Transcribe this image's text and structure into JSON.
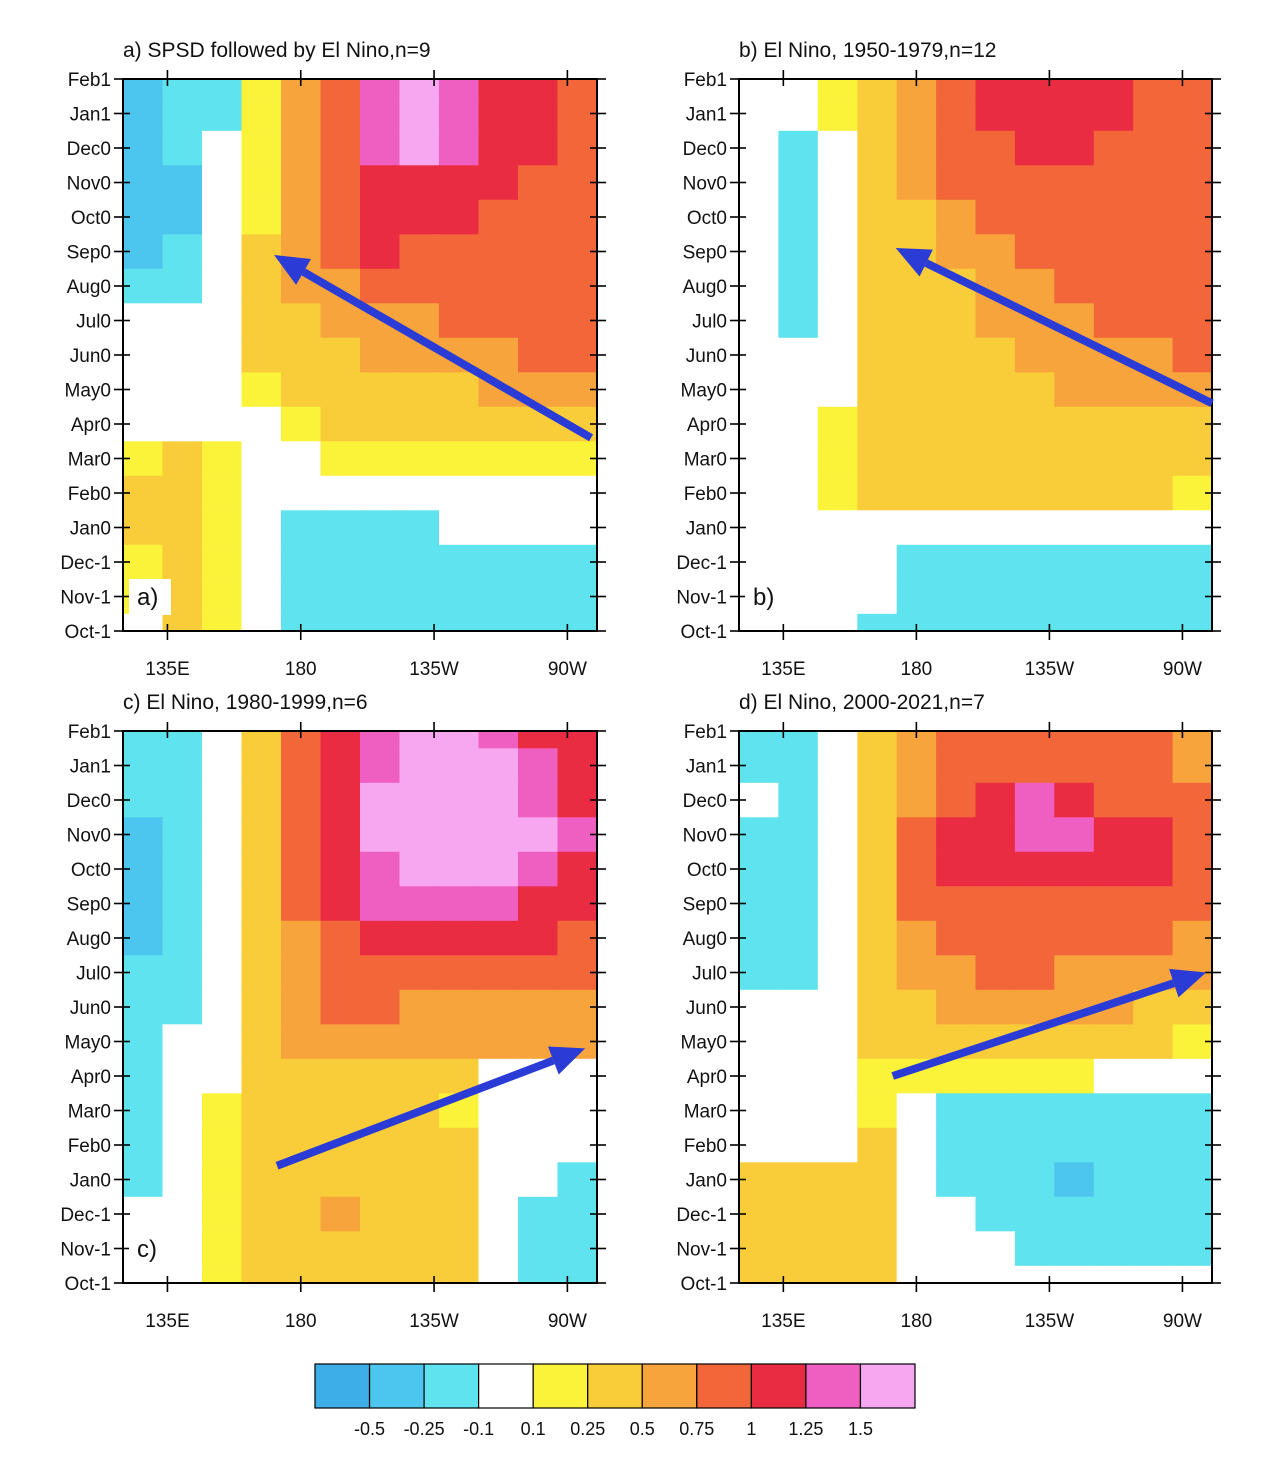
{
  "chart_data": {
    "type": "heatmap",
    "y_ticks": [
      "Feb1",
      "Jan1",
      "Dec0",
      "Nov0",
      "Oct0",
      "Sep0",
      "Aug0",
      "Jul0",
      "Jun0",
      "May0",
      "Apr0",
      "Mar0",
      "Feb0",
      "Jan0",
      "Dec-1",
      "Nov-1",
      "Oct-1"
    ],
    "x_ticks": [
      "135E",
      "180",
      "135W",
      "90W"
    ],
    "x_tick_lon": [
      135,
      180,
      225,
      270
    ],
    "xlim_lon": [
      120,
      280
    ],
    "grid": false,
    "colorbar": {
      "labels": [
        "-0.5",
        "-0.25",
        "-0.1",
        "0.1",
        "0.25",
        "0.5",
        "0.75",
        "1",
        "1.25",
        "1.5"
      ],
      "colors": [
        "#3eaee8",
        "#4cc6ee",
        "#5ee3ef",
        "#ffffff",
        "#fbf23a",
        "#f9cc3a",
        "#f7a43c",
        "#f2663a",
        "#ea2c43",
        "#ef5fc1",
        "#f7a6f0"
      ]
    },
    "panels": [
      {
        "id": "a",
        "title": "a) SPSD followed by El Nino,n=9",
        "label": "a)",
        "arrow": {
          "from": {
            "lon": 278,
            "month": 10.4
          },
          "to": {
            "lon": 171,
            "month": 5.1
          }
        },
        "field": [
          [
            -0.5,
            -0.25,
            -0.25,
            0.1,
            0.5,
            0.75,
            1.25,
            1.5,
            1.25,
            1.0,
            1.0,
            0.75
          ],
          [
            -0.5,
            -0.25,
            -0.25,
            0.1,
            0.5,
            0.75,
            1.25,
            1.5,
            1.25,
            1.0,
            1.0,
            0.75
          ],
          [
            -0.5,
            -0.25,
            -0.1,
            0.1,
            0.5,
            0.75,
            1.25,
            1.5,
            1.25,
            1.0,
            1.0,
            0.75
          ],
          [
            -0.5,
            -0.5,
            -0.1,
            0.1,
            0.5,
            0.75,
            1.0,
            1.0,
            1.0,
            1.0,
            0.75,
            0.75
          ],
          [
            -0.5,
            -0.5,
            -0.1,
            0.1,
            0.5,
            0.75,
            1.0,
            1.0,
            1.0,
            0.75,
            0.75,
            0.75
          ],
          [
            -0.5,
            -0.25,
            -0.1,
            0.25,
            0.5,
            0.75,
            1.0,
            0.75,
            0.75,
            0.75,
            0.75,
            0.75
          ],
          [
            -0.25,
            -0.25,
            0,
            0.25,
            0.5,
            0.5,
            0.75,
            0.75,
            0.75,
            0.75,
            0.75,
            0.75
          ],
          [
            0,
            0,
            0,
            0.25,
            0.25,
            0.5,
            0.5,
            0.5,
            0.75,
            0.75,
            0.75,
            0.75
          ],
          [
            0,
            0,
            0,
            0.25,
            0.25,
            0.25,
            0.5,
            0.5,
            0.5,
            0.5,
            0.75,
            0.75
          ],
          [
            0,
            0,
            0,
            0.1,
            0.25,
            0.25,
            0.25,
            0.25,
            0.25,
            0.5,
            0.5,
            0.5
          ],
          [
            0,
            0,
            0,
            0,
            0.1,
            0.25,
            0.25,
            0.25,
            0.25,
            0.25,
            0.25,
            0.25
          ],
          [
            0.1,
            0.25,
            0.1,
            0,
            0,
            0.1,
            0.1,
            0.1,
            0.1,
            0.1,
            0.1,
            0.1
          ],
          [
            0.25,
            0.25,
            0.1,
            -0.1,
            -0.1,
            -0.1,
            0,
            0,
            0,
            0,
            0,
            0
          ],
          [
            0.25,
            0.25,
            0.1,
            -0.1,
            -0.25,
            -0.25,
            -0.25,
            -0.25,
            -0.1,
            -0.1,
            -0.1,
            -0.1
          ],
          [
            0.1,
            0.25,
            0.1,
            -0.1,
            -0.25,
            -0.25,
            -0.25,
            -0.25,
            -0.25,
            -0.25,
            -0.25,
            -0.25
          ],
          [
            0.1,
            0.25,
            0.1,
            -0.1,
            -0.25,
            -0.25,
            -0.25,
            -0.25,
            -0.25,
            -0.25,
            -0.25,
            -0.25
          ],
          [
            0,
            0.25,
            0.1,
            -0.1,
            -0.25,
            -0.25,
            -0.25,
            -0.25,
            -0.25,
            -0.25,
            -0.25,
            -0.25
          ]
        ]
      },
      {
        "id": "b",
        "title": "b) El Nino, 1950-1979,n=12",
        "label": "b)",
        "arrow": {
          "from": {
            "lon": 280,
            "month": 9.4
          },
          "to": {
            "lon": 173,
            "month": 4.9
          }
        },
        "field": [
          [
            0,
            0,
            0.1,
            0.25,
            0.5,
            0.75,
            1.0,
            1.0,
            1.0,
            1.0,
            0.75,
            0.75
          ],
          [
            0,
            0,
            0.1,
            0.25,
            0.5,
            0.75,
            1.0,
            1.0,
            1.0,
            1.0,
            0.75,
            0.75
          ],
          [
            0,
            -0.25,
            -0.1,
            0.25,
            0.5,
            0.75,
            0.75,
            1.0,
            1.0,
            0.75,
            0.75,
            0.75
          ],
          [
            0,
            -0.25,
            -0.1,
            0.25,
            0.5,
            0.75,
            0.75,
            0.75,
            0.75,
            0.75,
            0.75,
            0.75
          ],
          [
            0,
            -0.25,
            -0.1,
            0.25,
            0.25,
            0.5,
            0.75,
            0.75,
            0.75,
            0.75,
            0.75,
            0.75
          ],
          [
            0,
            -0.25,
            -0.1,
            0.25,
            0.25,
            0.5,
            0.5,
            0.75,
            0.75,
            0.75,
            0.75,
            0.75
          ],
          [
            0,
            -0.25,
            -0.1,
            0.25,
            0.25,
            0.25,
            0.5,
            0.5,
            0.75,
            0.75,
            0.75,
            0.75
          ],
          [
            0,
            -0.25,
            0,
            0.25,
            0.25,
            0.25,
            0.5,
            0.5,
            0.5,
            0.75,
            0.75,
            0.75
          ],
          [
            0,
            0,
            0,
            0.25,
            0.25,
            0.25,
            0.25,
            0.5,
            0.5,
            0.5,
            0.5,
            0.75
          ],
          [
            0,
            0,
            0,
            0.25,
            0.25,
            0.25,
            0.25,
            0.25,
            0.5,
            0.5,
            0.5,
            0.5
          ],
          [
            0,
            0,
            0.1,
            0.25,
            0.25,
            0.25,
            0.25,
            0.25,
            0.25,
            0.25,
            0.25,
            0.25
          ],
          [
            0,
            0,
            0.1,
            0.25,
            0.25,
            0.25,
            0.25,
            0.25,
            0.25,
            0.25,
            0.25,
            0.25
          ],
          [
            0,
            0,
            0.1,
            0.25,
            0.25,
            0.25,
            0.25,
            0.25,
            0.25,
            0.25,
            0.25,
            0.1
          ],
          [
            0,
            0,
            0,
            0,
            0,
            0,
            0,
            0,
            0,
            0,
            0,
            0
          ],
          [
            0,
            0,
            0,
            -0.1,
            -0.25,
            -0.25,
            -0.25,
            -0.25,
            -0.25,
            -0.25,
            -0.25,
            -0.25
          ],
          [
            0,
            0,
            0,
            -0.1,
            -0.25,
            -0.25,
            -0.25,
            -0.25,
            -0.25,
            -0.25,
            -0.25,
            -0.25
          ],
          [
            0,
            0,
            0,
            -0.25,
            -0.25,
            -0.25,
            -0.25,
            -0.25,
            -0.25,
            -0.25,
            -0.25,
            -0.25
          ]
        ]
      },
      {
        "id": "c",
        "title": "c) El Nino, 1980-1999,n=6",
        "label": "c)",
        "arrow": {
          "from": {
            "lon": 172,
            "month": 12.6
          },
          "to": {
            "lon": 276,
            "month": 9.2
          }
        },
        "field": [
          [
            -0.25,
            -0.25,
            -0.1,
            0.25,
            0.75,
            1.0,
            1.25,
            1.5,
            1.5,
            1.25,
            1.0,
            1.0
          ],
          [
            -0.25,
            -0.25,
            -0.1,
            0.25,
            0.75,
            1.0,
            1.25,
            1.5,
            1.5,
            1.5,
            1.25,
            1.0
          ],
          [
            -0.25,
            -0.25,
            -0.1,
            0.25,
            0.75,
            1.0,
            1.5,
            1.5,
            1.5,
            1.5,
            1.25,
            1.0
          ],
          [
            -0.5,
            -0.25,
            -0.1,
            0.25,
            0.75,
            1.0,
            1.5,
            1.5,
            1.5,
            1.5,
            1.5,
            1.25
          ],
          [
            -0.5,
            -0.25,
            -0.1,
            0.25,
            0.75,
            1.0,
            1.25,
            1.5,
            1.5,
            1.5,
            1.25,
            1.0
          ],
          [
            -0.5,
            -0.25,
            -0.1,
            0.25,
            0.75,
            1.0,
            1.25,
            1.25,
            1.25,
            1.25,
            1.0,
            1.0
          ],
          [
            -0.5,
            -0.25,
            -0.1,
            0.25,
            0.5,
            0.75,
            1.0,
            1.0,
            1.0,
            1.0,
            1.0,
            0.75
          ],
          [
            -0.25,
            -0.25,
            -0.1,
            0.25,
            0.5,
            0.75,
            0.75,
            0.75,
            0.75,
            0.75,
            0.75,
            0.75
          ],
          [
            -0.25,
            -0.25,
            0,
            0.25,
            0.5,
            0.75,
            0.75,
            0.5,
            0.5,
            0.5,
            0.5,
            0.5
          ],
          [
            -0.25,
            0,
            0,
            0.25,
            0.5,
            0.5,
            0.5,
            0.5,
            0.5,
            0.5,
            0.5,
            0.5
          ],
          [
            -0.25,
            0,
            0,
            0.25,
            0.25,
            0.25,
            0.25,
            0.25,
            0.25,
            0,
            0,
            0
          ],
          [
            -0.25,
            0,
            0.1,
            0.25,
            0.25,
            0.25,
            0.25,
            0.25,
            0.1,
            0,
            0,
            0
          ],
          [
            -0.25,
            0,
            0.1,
            0.25,
            0.25,
            0.25,
            0.25,
            0.25,
            0.25,
            0,
            0,
            0
          ],
          [
            -0.25,
            0,
            0.1,
            0.25,
            0.25,
            0.25,
            0.25,
            0.25,
            0.25,
            0,
            0,
            -0.25
          ],
          [
            -0.1,
            0,
            0.1,
            0.25,
            0.25,
            0.5,
            0.25,
            0.25,
            0.25,
            0,
            -0.25,
            -0.25
          ],
          [
            0,
            0,
            0.1,
            0.25,
            0.25,
            0.25,
            0.25,
            0.25,
            0.25,
            0,
            -0.25,
            -0.25
          ],
          [
            0,
            0,
            0.1,
            0.25,
            0.25,
            0.25,
            0.25,
            0.25,
            0.25,
            0,
            -0.25,
            -0.25
          ]
        ]
      },
      {
        "id": "d",
        "title": "d) El Nino, 2000-2021,n=7",
        "label": "",
        "arrow": {
          "from": {
            "lon": 172,
            "month": 10.0
          },
          "to": {
            "lon": 278,
            "month": 7.0
          }
        },
        "field": [
          [
            -0.25,
            -0.25,
            -0.1,
            0.25,
            0.5,
            0.75,
            0.75,
            0.75,
            0.75,
            0.75,
            0.75,
            0.5
          ],
          [
            -0.25,
            -0.25,
            -0.1,
            0.25,
            0.5,
            0.75,
            0.75,
            0.75,
            0.75,
            0.75,
            0.75,
            0.5
          ],
          [
            0,
            -0.25,
            -0.1,
            0.25,
            0.5,
            0.75,
            1.0,
            1.25,
            1.0,
            0.75,
            0.75,
            0.75
          ],
          [
            -0.25,
            -0.25,
            -0.1,
            0.25,
            0.75,
            1.0,
            1.0,
            1.25,
            1.25,
            1.0,
            1.0,
            0.75
          ],
          [
            -0.25,
            -0.25,
            -0.1,
            0.25,
            0.75,
            1.0,
            1.0,
            1.0,
            1.0,
            1.0,
            1.0,
            0.75
          ],
          [
            -0.25,
            -0.25,
            -0.1,
            0.25,
            0.75,
            0.75,
            0.75,
            0.75,
            0.75,
            0.75,
            0.75,
            0.75
          ],
          [
            -0.25,
            -0.25,
            -0.1,
            0.25,
            0.5,
            0.75,
            0.75,
            0.75,
            0.75,
            0.75,
            0.75,
            0.5
          ],
          [
            -0.25,
            -0.25,
            0,
            0.25,
            0.5,
            0.5,
            0.75,
            0.75,
            0.5,
            0.5,
            0.5,
            0.5
          ],
          [
            0,
            0,
            0,
            0.25,
            0.25,
            0.5,
            0.5,
            0.5,
            0.5,
            0.5,
            0.25,
            0.25
          ],
          [
            0,
            0,
            0,
            0.25,
            0.25,
            0.25,
            0.25,
            0.25,
            0.25,
            0.25,
            0.25,
            0.1
          ],
          [
            0,
            0,
            0,
            0.1,
            0.1,
            0.1,
            0.1,
            0.1,
            0.1,
            0,
            0,
            0
          ],
          [
            0,
            0,
            0,
            0.1,
            0,
            -0.25,
            -0.25,
            -0.25,
            -0.25,
            -0.25,
            -0.25,
            -0.25
          ],
          [
            0,
            0,
            0,
            0.25,
            0,
            -0.25,
            -0.25,
            -0.25,
            -0.25,
            -0.25,
            -0.25,
            -0.25
          ],
          [
            0.25,
            0.25,
            0.25,
            0.25,
            0,
            -0.25,
            -0.25,
            -0.25,
            -0.5,
            -0.25,
            -0.25,
            -0.25
          ],
          [
            0.25,
            0.25,
            0.25,
            0.25,
            0,
            -0.1,
            -0.25,
            -0.25,
            -0.25,
            -0.25,
            -0.25,
            -0.25
          ],
          [
            0.25,
            0.25,
            0.25,
            0.25,
            0,
            0,
            -0.1,
            -0.25,
            -0.25,
            -0.25,
            -0.25,
            -0.25
          ],
          [
            0.25,
            0.25,
            0.25,
            0.25,
            0,
            0,
            0,
            -0.1,
            -0.1,
            -0.1,
            -0.1,
            -0.1
          ]
        ]
      }
    ]
  }
}
